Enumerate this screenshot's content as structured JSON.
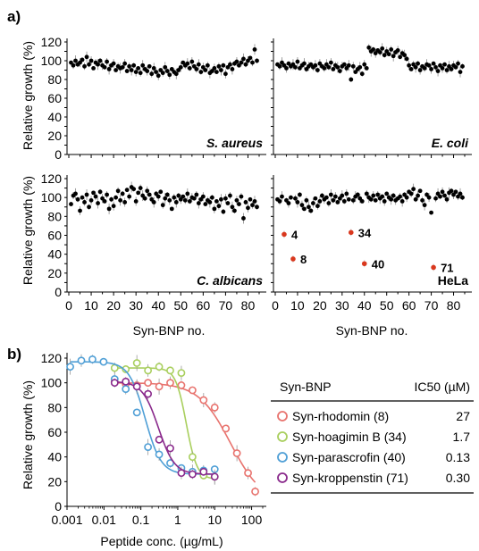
{
  "panel_labels": {
    "a": "a)",
    "b": "b)"
  },
  "colors": {
    "points": "#000000",
    "highlight": "#d9381e",
    "rhodomin": "#e8736e",
    "hoagimin": "#a9cf5e",
    "parascrofin": "#4f9fd6",
    "kroppenstin": "#8a2a8c"
  },
  "chart_data": [
    {
      "type": "scatter",
      "title": "S. aureus",
      "ylabel": "Relative growth (%)",
      "xlabel": "",
      "ylim": [
        0,
        120
      ],
      "xlim": [
        0,
        85
      ],
      "yticks": [
        0,
        10,
        20,
        30,
        40,
        50,
        60,
        70,
        80,
        90,
        100,
        110,
        120
      ],
      "x": [
        1,
        2,
        3,
        4,
        5,
        6,
        7,
        8,
        9,
        10,
        11,
        12,
        13,
        14,
        15,
        16,
        17,
        18,
        19,
        20,
        21,
        22,
        23,
        24,
        25,
        26,
        27,
        28,
        29,
        30,
        31,
        32,
        33,
        34,
        35,
        36,
        37,
        38,
        39,
        40,
        41,
        42,
        43,
        44,
        45,
        46,
        47,
        48,
        49,
        50,
        51,
        52,
        53,
        54,
        55,
        56,
        57,
        58,
        59,
        60,
        61,
        62,
        63,
        64,
        65,
        66,
        67,
        68,
        69,
        70,
        71,
        72,
        73,
        74,
        75,
        76,
        77,
        78,
        79,
        80,
        81,
        82,
        83,
        84
      ],
      "y": [
        98,
        95,
        100,
        96,
        98,
        101,
        94,
        104,
        96,
        100,
        92,
        98,
        96,
        100,
        95,
        93,
        99,
        91,
        95,
        97,
        90,
        94,
        92,
        93,
        97,
        89,
        94,
        90,
        95,
        88,
        92,
        87,
        95,
        91,
        89,
        94,
        86,
        92,
        88,
        84,
        90,
        87,
        93,
        89,
        85,
        91,
        88,
        86,
        90,
        93,
        98,
        95,
        97,
        92,
        99,
        94,
        91,
        96,
        88,
        93,
        90,
        95,
        87,
        89,
        92,
        88,
        94,
        90,
        95,
        86,
        93,
        96,
        91,
        97,
        99,
        95,
        98,
        102,
        96,
        100,
        103,
        98,
        112,
        100
      ]
    },
    {
      "type": "scatter",
      "title": "E. coli",
      "ylim": [
        0,
        120
      ],
      "xlim": [
        0,
        85
      ],
      "x": [
        1,
        2,
        3,
        4,
        5,
        6,
        7,
        8,
        9,
        10,
        11,
        12,
        13,
        14,
        15,
        16,
        17,
        18,
        19,
        20,
        21,
        22,
        23,
        24,
        25,
        26,
        27,
        28,
        29,
        30,
        31,
        32,
        33,
        34,
        35,
        36,
        37,
        38,
        39,
        40,
        41,
        42,
        43,
        44,
        45,
        46,
        47,
        48,
        49,
        50,
        51,
        52,
        53,
        54,
        55,
        56,
        57,
        58,
        59,
        60,
        61,
        62,
        63,
        64,
        65,
        66,
        67,
        68,
        69,
        70,
        71,
        72,
        73,
        74,
        75,
        76,
        77,
        78,
        79,
        80,
        81,
        82,
        83,
        84
      ],
      "y": [
        96,
        94,
        98,
        95,
        92,
        97,
        94,
        96,
        93,
        99,
        92,
        95,
        97,
        91,
        94,
        96,
        93,
        95,
        90,
        97,
        94,
        92,
        96,
        93,
        98,
        91,
        95,
        93,
        89,
        94,
        96,
        92,
        95,
        80,
        94,
        88,
        91,
        93,
        86,
        96,
        92,
        114,
        110,
        112,
        108,
        111,
        109,
        113,
        106,
        110,
        107,
        112,
        105,
        109,
        111,
        104,
        108,
        106,
        102,
        95,
        91,
        96,
        93,
        97,
        90,
        94,
        92,
        96,
        95,
        91,
        97,
        93,
        89,
        95,
        92,
        96,
        90,
        94,
        91,
        95,
        93,
        97,
        88,
        94
      ]
    },
    {
      "type": "scatter",
      "title": "C. albicans",
      "ylabel": "Relative growth (%)",
      "xlabel": "Syn-BNP no.",
      "ylim": [
        0,
        120
      ],
      "xlim": [
        0,
        85
      ],
      "xticks": [
        0,
        10,
        20,
        30,
        40,
        50,
        60,
        70,
        80
      ],
      "x": [
        1,
        2,
        3,
        4,
        5,
        6,
        7,
        8,
        9,
        10,
        11,
        12,
        13,
        14,
        15,
        16,
        17,
        18,
        19,
        20,
        21,
        22,
        23,
        24,
        25,
        26,
        27,
        28,
        29,
        30,
        31,
        32,
        33,
        34,
        35,
        36,
        37,
        38,
        39,
        40,
        41,
        42,
        43,
        44,
        45,
        46,
        47,
        48,
        49,
        50,
        51,
        52,
        53,
        54,
        55,
        56,
        57,
        58,
        59,
        60,
        61,
        62,
        63,
        64,
        65,
        66,
        67,
        68,
        69,
        70,
        71,
        72,
        73,
        74,
        75,
        76,
        77,
        78,
        79,
        80,
        81,
        82,
        83,
        84
      ],
      "y": [
        93,
        102,
        104,
        98,
        86,
        100,
        95,
        103,
        90,
        97,
        105,
        101,
        94,
        106,
        99,
        96,
        103,
        88,
        98,
        91,
        100,
        107,
        97,
        104,
        95,
        108,
        101,
        111,
        109,
        96,
        105,
        110,
        102,
        99,
        107,
        103,
        98,
        95,
        104,
        101,
        106,
        92,
        99,
        103,
        97,
        88,
        100,
        95,
        102,
        98,
        101,
        97,
        104,
        96,
        100,
        99,
        103,
        94,
        98,
        101,
        93,
        97,
        95,
        100,
        88,
        96,
        91,
        98,
        85,
        99,
        94,
        102,
        90,
        86,
        97,
        93,
        101,
        78,
        95,
        89,
        98,
        92,
        96,
        90
      ]
    },
    {
      "type": "scatter",
      "title": "HeLa",
      "xlabel": "Syn-BNP no.",
      "ylim": [
        0,
        120
      ],
      "xlim": [
        0,
        85
      ],
      "xticks": [
        0,
        10,
        20,
        30,
        40,
        50,
        60,
        70,
        80
      ],
      "x": [
        1,
        2,
        3,
        5,
        6,
        7,
        9,
        10,
        11,
        12,
        13,
        14,
        15,
        16,
        17,
        18,
        19,
        20,
        21,
        22,
        23,
        24,
        25,
        26,
        27,
        28,
        29,
        30,
        31,
        32,
        33,
        35,
        36,
        37,
        38,
        39,
        41,
        42,
        43,
        44,
        45,
        46,
        47,
        48,
        49,
        50,
        51,
        52,
        53,
        54,
        55,
        56,
        57,
        58,
        59,
        60,
        61,
        62,
        63,
        64,
        65,
        66,
        67,
        68,
        69,
        70,
        72,
        73,
        74,
        75,
        76,
        77,
        78,
        79,
        80,
        81,
        82,
        83,
        84
      ],
      "y": [
        98,
        96,
        101,
        97,
        94,
        100,
        99,
        95,
        103,
        92,
        88,
        97,
        90,
        86,
        94,
        99,
        91,
        96,
        102,
        98,
        100,
        94,
        103,
        97,
        101,
        95,
        99,
        102,
        96,
        104,
        98,
        97,
        101,
        103,
        99,
        96,
        104,
        100,
        98,
        102,
        97,
        103,
        99,
        101,
        96,
        104,
        100,
        98,
        102,
        97,
        99,
        101,
        96,
        103,
        100,
        106,
        104,
        109,
        98,
        102,
        107,
        97,
        92,
        103,
        100,
        84,
        99,
        104,
        101,
        106,
        102,
        98,
        105,
        107,
        103,
        106,
        101,
        104,
        100
      ],
      "highlighted": [
        {
          "id": "4",
          "x": 4,
          "y": 61
        },
        {
          "id": "8",
          "x": 8,
          "y": 35
        },
        {
          "id": "34",
          "x": 34,
          "y": 63
        },
        {
          "id": "40",
          "x": 40,
          "y": 30
        },
        {
          "id": "71",
          "x": 71,
          "y": 26
        }
      ]
    },
    {
      "type": "line",
      "xscale": "log",
      "xlabel": "Peptide conc. (µg/mL)",
      "ylabel": "Relative growth (%)",
      "xticks": [
        "0.001",
        "0.01",
        "0.1",
        "1",
        "10",
        "100"
      ],
      "ylim": [
        0,
        120
      ],
      "yticks": [
        0,
        20,
        40,
        60,
        80,
        100,
        120
      ],
      "series": [
        {
          "name": "Syn-rhodomin (8)",
          "color": "#e8736e",
          "ic50": 27,
          "top": 100,
          "bottom": 2,
          "hill": 1.0,
          "x": [
            0.0195,
            0.039,
            0.078,
            0.156,
            0.3125,
            0.625,
            1.25,
            2.5,
            5,
            10,
            20,
            40,
            80,
            125
          ],
          "y": [
            101,
            99,
            98,
            100,
            97,
            100,
            98,
            94,
            86,
            80,
            63,
            43,
            27,
            12
          ]
        },
        {
          "name": "Syn-hoagimin B (34)",
          "color": "#a9cf5e",
          "ic50": 1.7,
          "top": 112,
          "bottom": 22,
          "hill": 3.0,
          "x": [
            0.0195,
            0.039,
            0.078,
            0.156,
            0.3125,
            0.625,
            1.25,
            2.5,
            5,
            10
          ],
          "y": [
            112,
            111,
            116,
            110,
            113,
            110,
            108,
            40,
            25,
            24
          ]
        },
        {
          "name": "Syn-parascrofin (40)",
          "color": "#4f9fd6",
          "ic50": 0.13,
          "top": 117,
          "bottom": 26,
          "hill": 2.0,
          "x": [
            0.00122,
            0.00244,
            0.00488,
            0.00977,
            0.0195,
            0.039,
            0.078,
            0.156,
            0.3125,
            0.625,
            1.25,
            2.5,
            5,
            10
          ],
          "y": [
            113,
            118,
            119,
            117,
            103,
            95,
            76,
            48,
            42,
            35,
            31,
            28,
            29,
            30
          ]
        },
        {
          "name": "Syn-kroppenstin (71)",
          "color": "#8a2a8c",
          "ic50": 0.3,
          "top": 101,
          "bottom": 26,
          "hill": 2.0,
          "x": [
            0.0195,
            0.039,
            0.078,
            0.156,
            0.3125,
            0.625,
            1.25,
            2.5,
            5,
            10
          ],
          "y": [
            100,
            101,
            97,
            91,
            54,
            47,
            27,
            26,
            28,
            24
          ]
        }
      ]
    }
  ],
  "table": {
    "headers": [
      "Syn-BNP",
      "IC50 (µM)"
    ],
    "rows": [
      {
        "name": "Syn-rhodomin (8)",
        "ic50": "27"
      },
      {
        "name": "Syn-hoagimin B (34)",
        "ic50": "1.7"
      },
      {
        "name": "Syn-parascrofin (40)",
        "ic50": "0.13"
      },
      {
        "name": "Syn-kroppenstin (71)",
        "ic50": "0.30"
      }
    ]
  }
}
